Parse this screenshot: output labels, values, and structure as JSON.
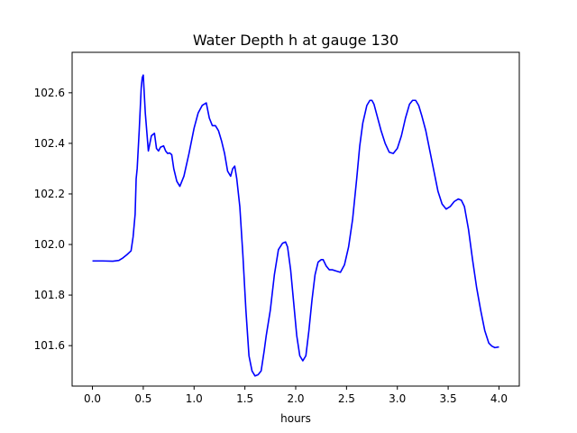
{
  "chart_data": {
    "type": "line",
    "title": "Water Depth h at gauge 130",
    "xlabel": "hours",
    "ylabel": "",
    "xlim": [
      -0.2,
      4.2
    ],
    "ylim": [
      101.44,
      102.76
    ],
    "grid": false,
    "legend": "none",
    "xticks": [
      0.0,
      0.5,
      1.0,
      1.5,
      2.0,
      2.5,
      3.0,
      3.5,
      4.0
    ],
    "xtick_labels": [
      "0.0",
      "0.5",
      "1.0",
      "1.5",
      "2.0",
      "2.5",
      "3.0",
      "3.5",
      "4.0"
    ],
    "yticks": [
      101.6,
      101.8,
      102.0,
      102.2,
      102.4,
      102.6
    ],
    "ytick_labels": [
      "101.6",
      "101.8",
      "102.0",
      "102.2",
      "102.4",
      "102.6"
    ],
    "line_color": "#0000ff",
    "series": [
      {
        "x": [
          0.0,
          0.1,
          0.2,
          0.26,
          0.3,
          0.34,
          0.38,
          0.4,
          0.42,
          0.43,
          0.44,
          0.46,
          0.48,
          0.49,
          0.5,
          0.52,
          0.55,
          0.58,
          0.61,
          0.63,
          0.65,
          0.67,
          0.7,
          0.72,
          0.74,
          0.76,
          0.78,
          0.8,
          0.83,
          0.86,
          0.9,
          0.95,
          1.0,
          1.04,
          1.08,
          1.12,
          1.15,
          1.18,
          1.21,
          1.24,
          1.27,
          1.3,
          1.33,
          1.36,
          1.38,
          1.4,
          1.42,
          1.45,
          1.48,
          1.51,
          1.54,
          1.57,
          1.6,
          1.63,
          1.66,
          1.69,
          1.71,
          1.75,
          1.79,
          1.83,
          1.87,
          1.9,
          1.92,
          1.95,
          1.98,
          2.01,
          2.04,
          2.07,
          2.1,
          2.13,
          2.16,
          2.19,
          2.22,
          2.25,
          2.27,
          2.3,
          2.33,
          2.36,
          2.4,
          2.44,
          2.48,
          2.52,
          2.56,
          2.6,
          2.63,
          2.66,
          2.7,
          2.73,
          2.75,
          2.77,
          2.8,
          2.84,
          2.88,
          2.92,
          2.96,
          3.0,
          3.04,
          3.08,
          3.12,
          3.15,
          3.18,
          3.21,
          3.24,
          3.28,
          3.32,
          3.36,
          3.4,
          3.44,
          3.48,
          3.52,
          3.56,
          3.6,
          3.63,
          3.66,
          3.7,
          3.74,
          3.78,
          3.82,
          3.86,
          3.9,
          3.93,
          3.96,
          4.0
        ],
        "y": [
          101.935,
          101.935,
          101.934,
          101.937,
          101.947,
          101.96,
          101.975,
          102.03,
          102.12,
          102.26,
          102.3,
          102.45,
          102.62,
          102.66,
          102.67,
          102.52,
          102.37,
          102.43,
          102.44,
          102.38,
          102.37,
          102.385,
          102.39,
          102.37,
          102.36,
          102.362,
          102.355,
          102.3,
          102.25,
          102.23,
          102.27,
          102.36,
          102.46,
          102.52,
          102.55,
          102.56,
          102.5,
          102.47,
          102.47,
          102.45,
          102.41,
          102.36,
          102.29,
          102.27,
          102.3,
          102.31,
          102.26,
          102.15,
          101.96,
          101.74,
          101.56,
          101.5,
          101.48,
          101.485,
          101.5,
          101.58,
          101.64,
          101.74,
          101.88,
          101.98,
          102.005,
          102.01,
          101.99,
          101.9,
          101.77,
          101.64,
          101.56,
          101.54,
          101.56,
          101.66,
          101.78,
          101.88,
          101.93,
          101.94,
          101.94,
          101.915,
          101.9,
          101.9,
          101.895,
          101.89,
          101.92,
          101.99,
          102.1,
          102.26,
          102.39,
          102.48,
          102.55,
          102.57,
          102.57,
          102.555,
          102.51,
          102.45,
          102.4,
          102.365,
          102.36,
          102.38,
          102.43,
          102.5,
          102.555,
          102.57,
          102.57,
          102.55,
          102.51,
          102.45,
          102.37,
          102.29,
          102.21,
          102.16,
          102.14,
          102.15,
          102.17,
          102.18,
          102.175,
          102.15,
          102.06,
          101.94,
          101.83,
          101.74,
          101.66,
          101.61,
          101.598,
          101.592,
          101.595
        ]
      }
    ]
  }
}
